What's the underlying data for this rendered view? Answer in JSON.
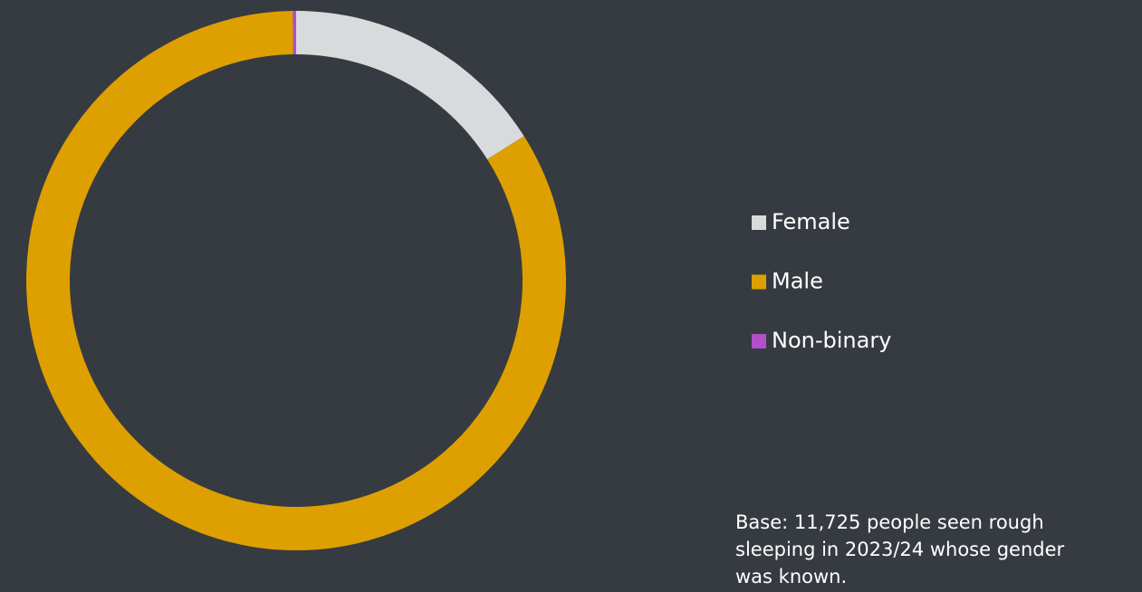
{
  "chart_data": {
    "type": "donut",
    "categories": [
      "Female",
      "Male",
      "Non-binary"
    ],
    "values": [
      16,
      83.8,
      0.2
    ],
    "colors": [
      "#d9dadb",
      "#dea000",
      "#b24fc9"
    ],
    "legend": "right",
    "note": [
      "Base: 11,725 people seen rough",
      "sleeping in 2023/24 whose gender",
      "was known."
    ]
  }
}
